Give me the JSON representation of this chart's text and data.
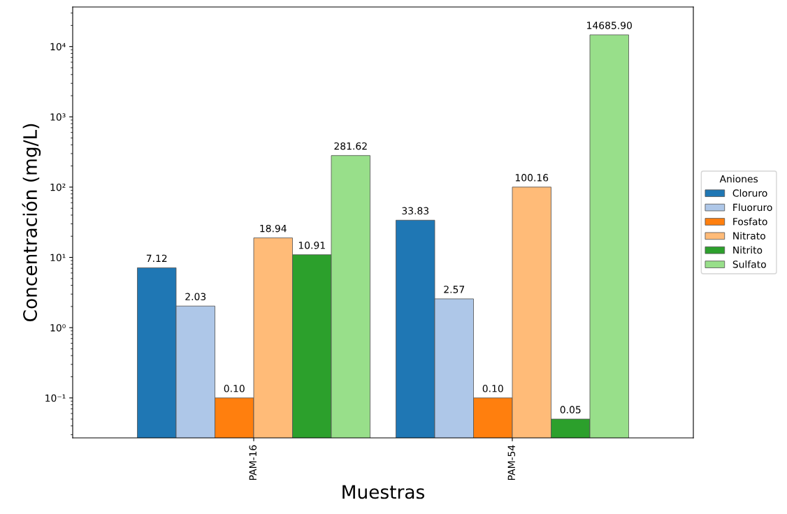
{
  "chart_data": {
    "type": "bar",
    "xlabel": "Muestras",
    "ylabel": "Concentración (mg/L)",
    "legend_title": "Aniones",
    "categories": [
      "PAM-16",
      "PAM-54"
    ],
    "series": [
      {
        "name": "Cloruro",
        "color": "#1f77b4",
        "values": [
          7.12,
          33.83
        ],
        "value_labels": [
          "7.12",
          "33.83"
        ]
      },
      {
        "name": "Fluoruro",
        "color": "#aec7e8",
        "values": [
          2.03,
          2.57
        ],
        "value_labels": [
          "2.03",
          "2.57"
        ]
      },
      {
        "name": "Fosfato",
        "color": "#ff7f0e",
        "values": [
          0.1,
          0.1
        ],
        "value_labels": [
          "0.10",
          "0.10"
        ]
      },
      {
        "name": "Nitrato",
        "color": "#ffbb78",
        "values": [
          18.94,
          100.16
        ],
        "value_labels": [
          "18.94",
          "100.16"
        ]
      },
      {
        "name": "Nitrito",
        "color": "#2ca02c",
        "values": [
          10.91,
          0.05
        ],
        "value_labels": [
          "10.91",
          "0.05"
        ]
      },
      {
        "name": "Sulfato",
        "color": "#98df8a",
        "values": [
          281.62,
          14685.9
        ],
        "value_labels": [
          "281.62",
          "14685.90"
        ]
      }
    ],
    "log": "y",
    "ylim": [
      0.027,
      36600
    ],
    "yticks": [
      {
        "value": 0.1,
        "label": "10⁻¹"
      },
      {
        "value": 1,
        "label": "10⁰"
      },
      {
        "value": 10,
        "label": "10¹"
      },
      {
        "value": 100,
        "label": "10²"
      },
      {
        "value": 1000,
        "label": "10³"
      },
      {
        "value": 10000,
        "label": "10⁴"
      }
    ],
    "grid": false,
    "legend": "right"
  }
}
